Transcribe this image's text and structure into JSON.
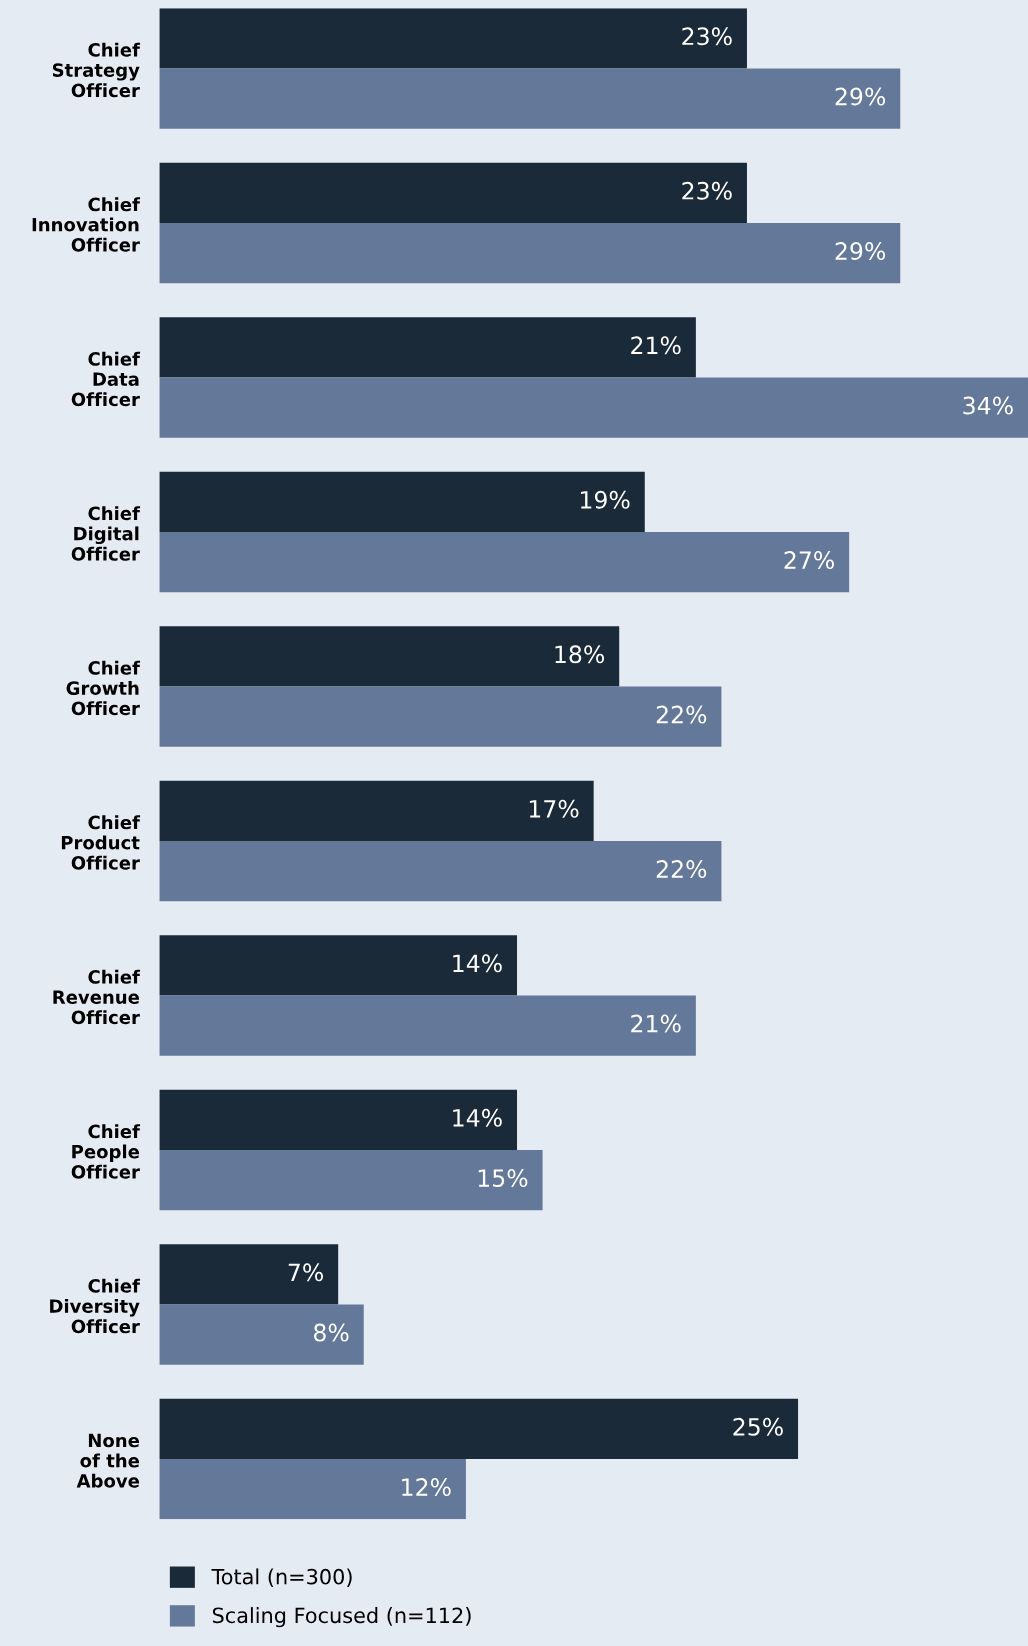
{
  "chart_data": {
    "type": "bar",
    "orientation": "horizontal",
    "categories": [
      "Chief\nStrategy\nOfficer",
      "Chief\nInnovation\nOfficer",
      "Chief\nData\nOfficer",
      "Chief\nDigital\nOfficer",
      "Chief\nGrowth\nOfficer",
      "Chief\nProduct\nOfficer",
      "Chief\nRevenue\nOfficer",
      "Chief\nPeople\nOfficer",
      "Chief\nDiversity\nOfficer",
      "None\nof the\nAbove"
    ],
    "series": [
      {
        "name": "Total (n=300)",
        "color": "#1b2a38",
        "values": [
          23,
          23,
          21,
          19,
          18,
          17,
          14,
          14,
          7,
          25
        ],
        "value_labels": [
          "23%",
          "23%",
          "21%",
          "19%",
          "18%",
          "17%",
          "14%",
          "14%",
          "7%",
          "25%"
        ]
      },
      {
        "name": "Scaling Focused (n=112)",
        "color": "#64789a",
        "values": [
          29,
          29,
          34,
          27,
          22,
          22,
          21,
          15,
          8,
          12
        ],
        "value_labels": [
          "29%",
          "29%",
          "34%",
          "27%",
          "22%",
          "22%",
          "21%",
          "15%",
          "8%",
          "12%"
        ]
      }
    ],
    "xlim": [
      0,
      34
    ],
    "tick_labels": "y",
    "grid": false,
    "legend": "bottom left"
  }
}
